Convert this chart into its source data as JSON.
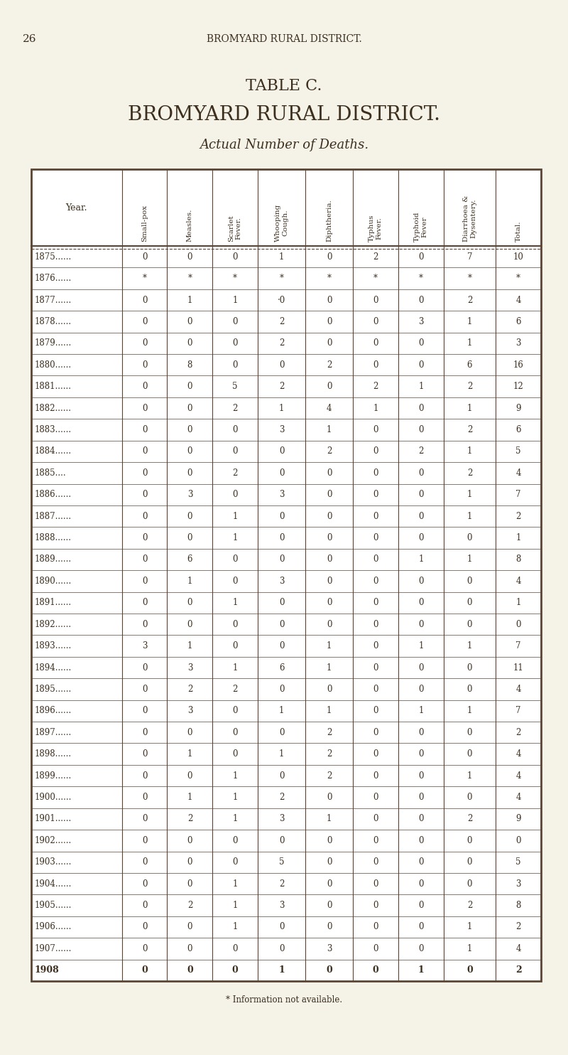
{
  "page_number": "26",
  "header_line": "BROMYARD RURAL DISTRICT.",
  "title1": "TABLE C.",
  "title2": "BROMYARD RURAL DISTRICT.",
  "title3": "Actual Number of Deaths.",
  "col_headers": [
    "Year.",
    "Small-pox",
    "Measles.",
    "Scarlet\nFever.",
    "Whooping\nCough.",
    "Diphtheria.",
    "Typhus\nFever.",
    "Typhoid\nFever",
    "Diarrhoea &\nDysentery.",
    "Total."
  ],
  "rows": [
    [
      "1875......",
      "0",
      "0",
      "0",
      "1",
      "0",
      "2",
      "0",
      "7",
      "10"
    ],
    [
      "1876......",
      "*",
      "*",
      "*",
      "*",
      "*",
      "*",
      "*",
      "*",
      "*"
    ],
    [
      "1877......",
      "0",
      "1",
      "1",
      "·0",
      "0",
      "0",
      "0",
      "2",
      "4"
    ],
    [
      "1878......",
      "0",
      "0",
      "0",
      "2",
      "0",
      "0",
      "3",
      "1",
      "6"
    ],
    [
      "1879......",
      "0",
      "0",
      "0",
      "2",
      "0",
      "0",
      "0",
      "1",
      "3"
    ],
    [
      "1880......",
      "0",
      "8",
      "0",
      "0",
      "2",
      "0",
      "0",
      "6",
      "16"
    ],
    [
      "1881......",
      "0",
      "0",
      "5",
      "2",
      "0",
      "2",
      "1",
      "2",
      "12"
    ],
    [
      "1882......",
      "0",
      "0",
      "2",
      "1",
      "4",
      "1",
      "0",
      "1",
      "9"
    ],
    [
      "1883......",
      "0",
      "0",
      "0",
      "3",
      "1",
      "0",
      "0",
      "2",
      "6"
    ],
    [
      "1884......",
      "0",
      "0",
      "0",
      "0",
      "2",
      "0",
      "2",
      "1",
      "5"
    ],
    [
      "1885....",
      "0",
      "0",
      "2",
      "0",
      "0",
      "0",
      "0",
      "2",
      "4"
    ],
    [
      "1886......",
      "0",
      "3",
      "0",
      "3",
      "0",
      "0",
      "0",
      "1",
      "7"
    ],
    [
      "1887......",
      "0",
      "0",
      "1",
      "0",
      "0",
      "0",
      "0",
      "1",
      "2"
    ],
    [
      "1888......",
      "0",
      "0",
      "1",
      "0",
      "0",
      "0",
      "0",
      "0",
      "1"
    ],
    [
      "1889......",
      "0",
      "6",
      "0",
      "0",
      "0",
      "0",
      "1",
      "1",
      "8"
    ],
    [
      "1890......",
      "0",
      "1",
      "0",
      "3",
      "0",
      "0",
      "0",
      "0",
      "4"
    ],
    [
      "1891......",
      "0",
      "0",
      "1",
      "0",
      "0",
      "0",
      "0",
      "0",
      "1"
    ],
    [
      "1892......",
      "0",
      "0",
      "0",
      "0",
      "0",
      "0",
      "0",
      "0",
      "0"
    ],
    [
      "1893......",
      "3",
      "1",
      "0",
      "0",
      "1",
      "0",
      "1",
      "1",
      "7"
    ],
    [
      "1894......",
      "0",
      "3",
      "1",
      "6",
      "1",
      "0",
      "0",
      "0",
      "11"
    ],
    [
      "1895......",
      "0",
      "2",
      "2",
      "0",
      "0",
      "0",
      "0",
      "0",
      "4"
    ],
    [
      "1896......",
      "0",
      "3",
      "0",
      "1",
      "1",
      "0",
      "1",
      "1",
      "7"
    ],
    [
      "1897......",
      "0",
      "0",
      "0",
      "0",
      "2",
      "0",
      "0",
      "0",
      "2"
    ],
    [
      "1898......",
      "0",
      "1",
      "0",
      "1",
      "2",
      "0",
      "0",
      "0",
      "4"
    ],
    [
      "1899......",
      "0",
      "0",
      "1",
      "0",
      "2",
      "0",
      "0",
      "1",
      "4"
    ],
    [
      "1900......",
      "0",
      "1",
      "1",
      "2",
      "0",
      "0",
      "0",
      "0",
      "4"
    ],
    [
      "1901......",
      "0",
      "2",
      "1",
      "3",
      "1",
      "0",
      "0",
      "2",
      "9"
    ],
    [
      "1902......",
      "0",
      "0",
      "0",
      "0",
      "0",
      "0",
      "0",
      "0",
      "0"
    ],
    [
      "1903......",
      "0",
      "0",
      "0",
      "5",
      "0",
      "0",
      "0",
      "0",
      "5"
    ],
    [
      "1904......",
      "0",
      "0",
      "1",
      "2",
      "0",
      "0",
      "0",
      "0",
      "3"
    ],
    [
      "1905......",
      "0",
      "2",
      "1",
      "3",
      "0",
      "0",
      "0",
      "2",
      "8"
    ],
    [
      "1906......",
      "0",
      "0",
      "1",
      "0",
      "0",
      "0",
      "0",
      "1",
      "2"
    ],
    [
      "1907......",
      "0",
      "0",
      "0",
      "0",
      "3",
      "0",
      "0",
      "1",
      "4"
    ],
    [
      "1908",
      "0",
      "0",
      "0",
      "1",
      "0",
      "0",
      "1",
      "0",
      "2"
    ]
  ],
  "footnote": "* Information not available.",
  "bg_color": "#f5f2e8",
  "text_color": "#3d2f1e",
  "table_line_color": "#5a4535",
  "col_width_ratios": [
    2.0,
    1.0,
    1.0,
    1.0,
    1.05,
    1.05,
    1.0,
    1.0,
    1.15,
    1.0
  ]
}
